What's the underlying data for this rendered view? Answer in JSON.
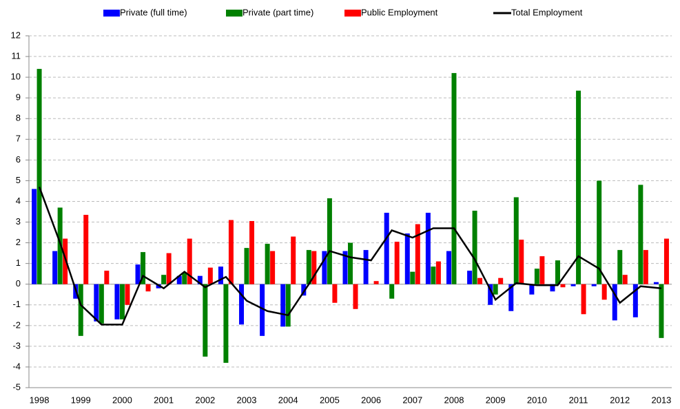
{
  "chart_data": {
    "type": "bar",
    "categories": [
      "1998",
      null,
      "1999",
      null,
      "2000",
      null,
      "2001",
      null,
      "2002",
      null,
      "2003",
      null,
      "2004",
      null,
      "2005",
      null,
      "2006",
      null,
      "2007",
      null,
      "2008",
      null,
      "2009",
      null,
      "2010",
      null,
      "2011",
      null,
      "2012",
      null,
      "2013"
    ],
    "series": [
      {
        "name": "Private (full time)",
        "color": "#0000ff",
        "values": [
          4.6,
          1.6,
          -0.7,
          -1.8,
          -1.7,
          0.95,
          -0.2,
          0.4,
          0.4,
          0.85,
          -1.95,
          -2.5,
          -2.05,
          -0.55,
          1.6,
          1.6,
          1.65,
          3.45,
          2.45,
          3.45,
          1.6,
          0.65,
          -1.0,
          -1.3,
          -0.5,
          -0.35,
          -0.1,
          -0.1,
          -1.75,
          -1.6,
          0.1
        ]
      },
      {
        "name": "Private (part time)",
        "color": "#008000",
        "values": [
          10.4,
          3.7,
          -2.5,
          -1.9,
          -1.7,
          1.55,
          0.45,
          0.55,
          -3.5,
          -3.8,
          1.75,
          1.95,
          -2.05,
          1.65,
          4.15,
          2.0,
          0,
          -0.7,
          0.6,
          0.85,
          10.2,
          3.55,
          -0.5,
          4.2,
          0.75,
          1.15,
          9.35,
          5.0,
          1.65,
          4.8,
          -2.6
        ]
      },
      {
        "name": "Public Employment",
        "color": "#ff0000",
        "values": [
          0,
          2.2,
          3.35,
          0.65,
          -1.0,
          -0.35,
          1.5,
          2.2,
          0.8,
          3.1,
          3.05,
          1.6,
          2.3,
          1.6,
          -0.9,
          -1.2,
          0.15,
          2.05,
          2.9,
          1.1,
          0,
          0.3,
          0.3,
          2.15,
          1.35,
          -0.15,
          -1.45,
          -0.75,
          0.45,
          1.65,
          2.2
        ]
      },
      {
        "name": "Total Employment",
        "color": "#000000",
        "type": "line",
        "values": [
          4.7,
          2.0,
          -1.0,
          -1.95,
          -1.95,
          0.4,
          -0.2,
          0.6,
          -0.15,
          0.35,
          -0.8,
          -1.3,
          -1.5,
          0.0,
          1.6,
          1.3,
          1.15,
          2.6,
          2.25,
          2.7,
          2.7,
          1.2,
          -0.75,
          0.05,
          -0.05,
          -0.05,
          1.35,
          0.75,
          -0.9,
          -0.1,
          -0.2
        ]
      }
    ],
    "ylim": [
      -5,
      12
    ],
    "yticks": [
      -5,
      -4,
      -3,
      -2,
      -1,
      0,
      1,
      2,
      3,
      4,
      5,
      6,
      7,
      8,
      9,
      10,
      11,
      12
    ],
    "grid": true
  }
}
